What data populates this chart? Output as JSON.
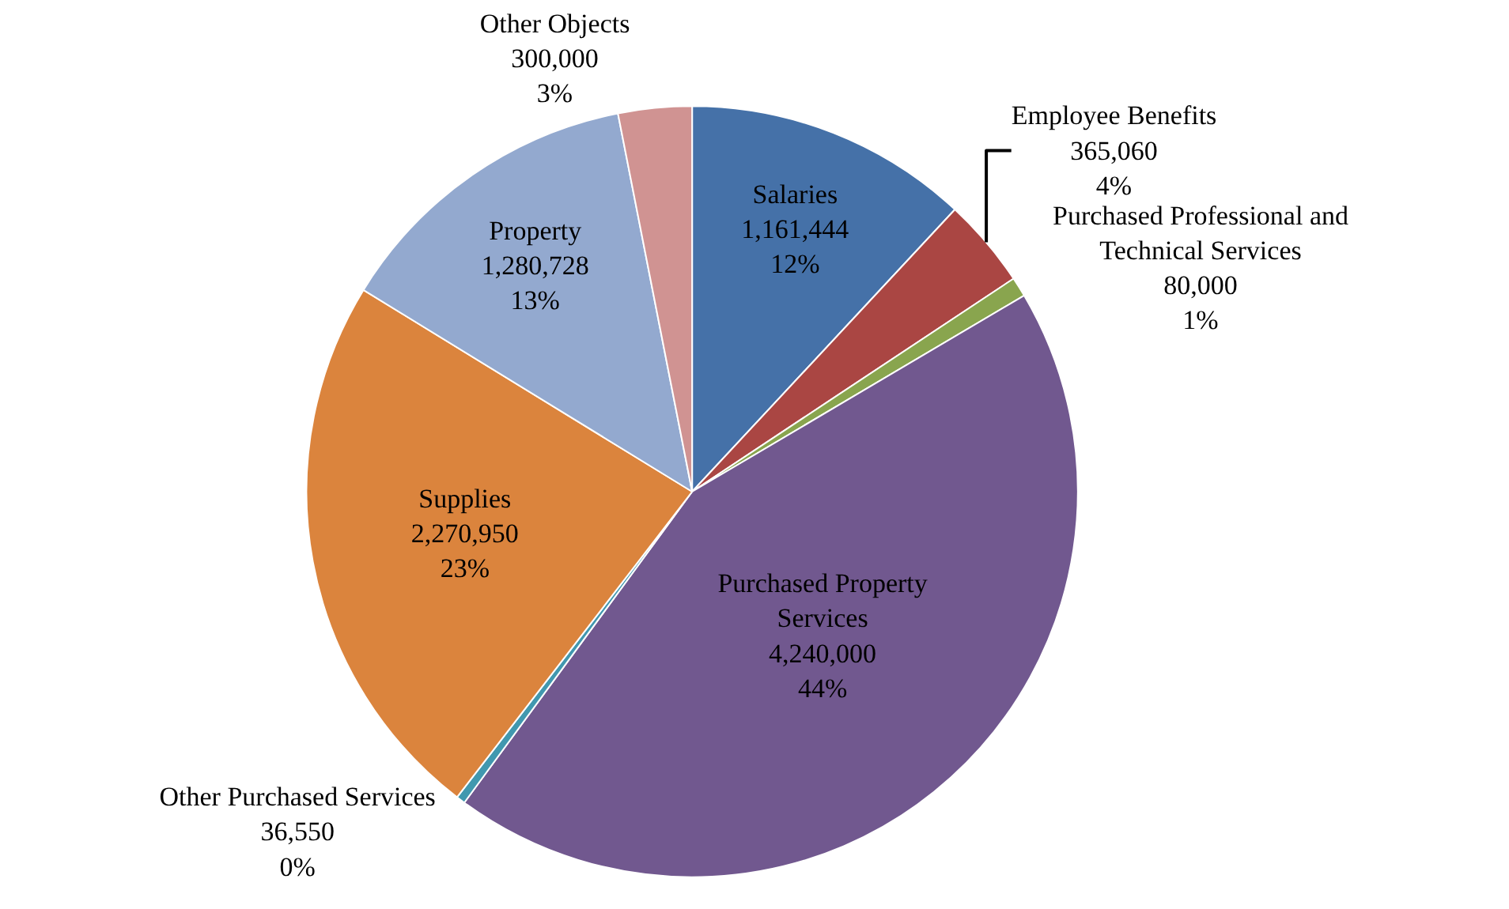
{
  "chart_data": {
    "type": "pie",
    "categories": [
      "Salaries",
      "Employee Benefits",
      "Purchased Professional and Technical Services",
      "Purchased Property Services",
      "Other Purchased Services",
      "Supplies",
      "Property",
      "Other Objects"
    ],
    "values": [
      1161444,
      365060,
      80000,
      4240000,
      36550,
      2270950,
      1280728,
      300000
    ],
    "value_labels": [
      "1,161,444\n12%",
      "365,060\n4%",
      "80,000\n1%",
      "4,240,000\n44%",
      "36,550\n0%",
      "2,270,950\n23%",
      "1,280,728\n13%",
      "300,000\n3%"
    ],
    "colors": [
      "#4571a8",
      "#aa4643",
      "#89a54e",
      "#71588f",
      "#4198af",
      "#db843d",
      "#93a9cf",
      "#d09392"
    ],
    "legend": false
  }
}
